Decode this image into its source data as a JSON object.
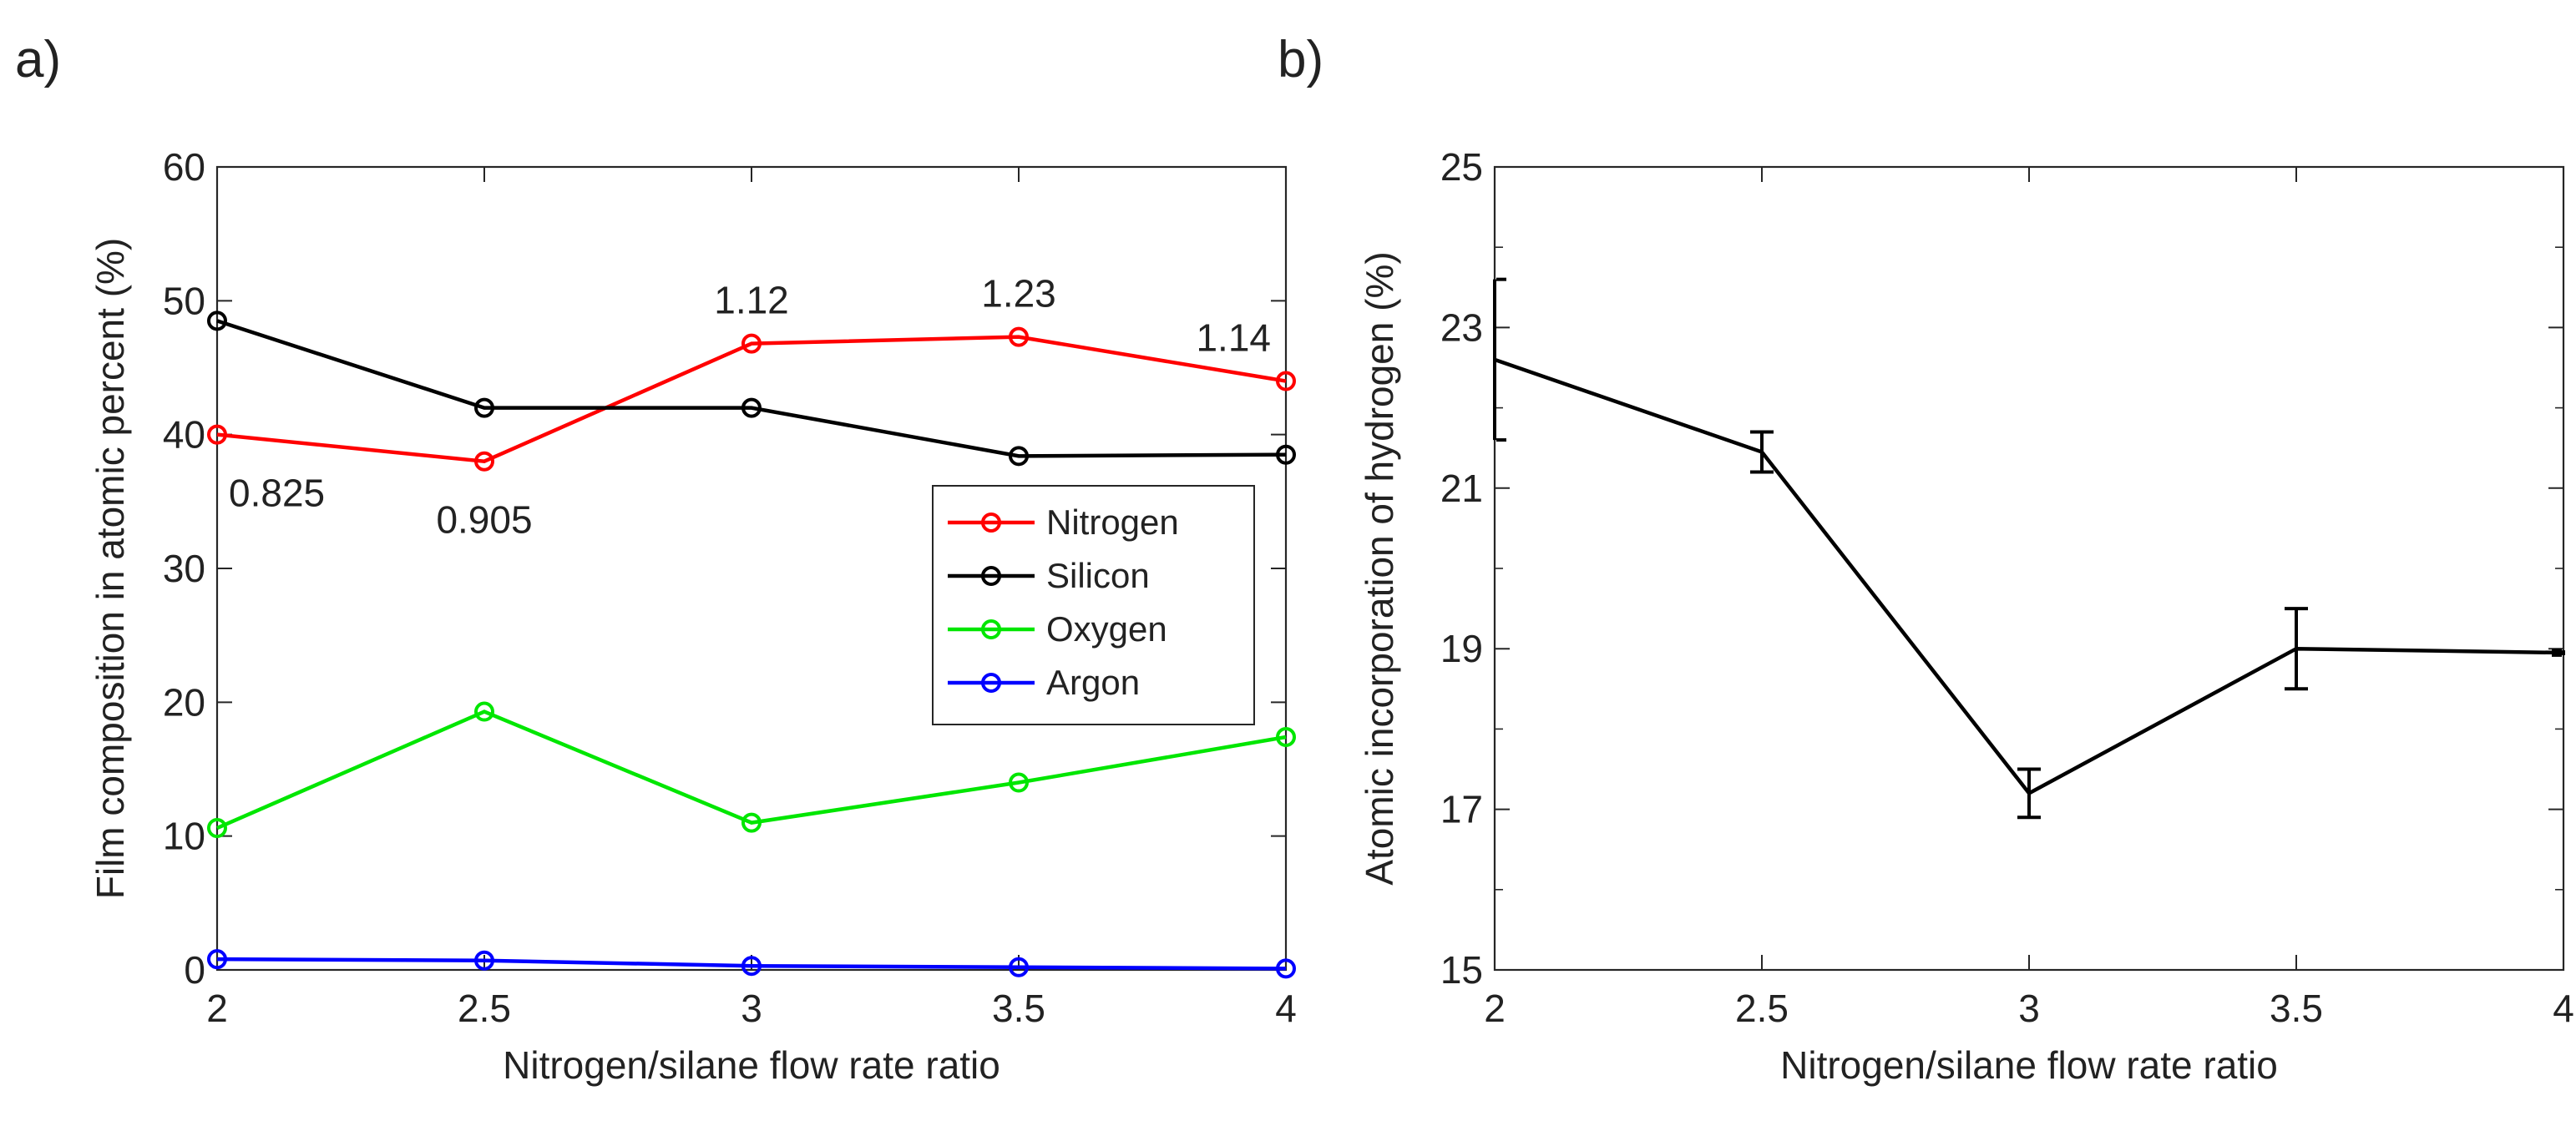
{
  "figure": {
    "panel_a_label": "a)",
    "panel_b_label": "b)"
  },
  "chart_data": [
    {
      "type": "line",
      "panel": "a",
      "title": "",
      "xlabel": "Nitrogen/silane flow rate ratio",
      "ylabel": "Film composition in atomic percent (%)",
      "xlim": [
        2,
        4
      ],
      "ylim": [
        0,
        60
      ],
      "xticks": [
        2,
        2.5,
        3,
        3.5,
        4
      ],
      "xtick_labels": [
        "2",
        "2.5",
        "3",
        "3.5",
        "4"
      ],
      "yticks": [
        0,
        10,
        20,
        30,
        40,
        50,
        60
      ],
      "ytick_labels": [
        "0",
        "10",
        "20",
        "30",
        "40",
        "50",
        "60"
      ],
      "x": [
        2,
        2.5,
        3,
        3.5,
        4
      ],
      "series": [
        {
          "name": "Nitrogen",
          "color": "#ff0000",
          "values": [
            40.0,
            38.0,
            46.8,
            47.3,
            44.0
          ]
        },
        {
          "name": "Silicon",
          "color": "#000000",
          "values": [
            48.5,
            42.0,
            42.0,
            38.4,
            38.5
          ]
        },
        {
          "name": "Oxygen",
          "color": "#00e600",
          "values": [
            10.6,
            19.3,
            11.0,
            14.0,
            17.4
          ]
        },
        {
          "name": "Argon",
          "color": "#0000ff",
          "values": [
            0.8,
            0.7,
            0.3,
            0.2,
            0.1
          ]
        }
      ],
      "annotations": [
        {
          "text": "0.825",
          "x": 2,
          "y": 40.0,
          "position": "below"
        },
        {
          "text": "0.905",
          "x": 2.5,
          "y": 38.0,
          "position": "below"
        },
        {
          "text": "1.12",
          "x": 3,
          "y": 46.8,
          "position": "above"
        },
        {
          "text": "1.23",
          "x": 3.5,
          "y": 47.3,
          "position": "above"
        },
        {
          "text": "1.14",
          "x": 4,
          "y": 44.0,
          "position": "above"
        }
      ],
      "legend": {
        "placement": "center-right",
        "entries": [
          "Nitrogen",
          "Silicon",
          "Oxygen",
          "Argon"
        ]
      }
    },
    {
      "type": "line",
      "panel": "b",
      "title": "",
      "xlabel": "Nitrogen/silane flow rate ratio",
      "ylabel": "Atomic incorporation of hydrogen (%)",
      "xlim": [
        2,
        4
      ],
      "ylim": [
        15,
        25
      ],
      "xticks": [
        2,
        2.5,
        3,
        3.5,
        4
      ],
      "xtick_labels": [
        "2",
        "2.5",
        "3",
        "3.5",
        "4"
      ],
      "yticks": [
        15,
        17,
        19,
        21,
        23,
        25
      ],
      "ytick_labels": [
        "15",
        "17",
        "19",
        "21",
        "23",
        "25"
      ],
      "minor_yticks": [
        16,
        18,
        20,
        22,
        24
      ],
      "x": [
        2,
        2.5,
        3,
        3.5,
        4
      ],
      "series": [
        {
          "name": "Hydrogen",
          "color": "#000000",
          "values": [
            22.6,
            21.45,
            17.2,
            19.0,
            18.95
          ],
          "error": [
            1.0,
            0.25,
            0.3,
            0.5,
            0.03
          ]
        }
      ]
    }
  ]
}
